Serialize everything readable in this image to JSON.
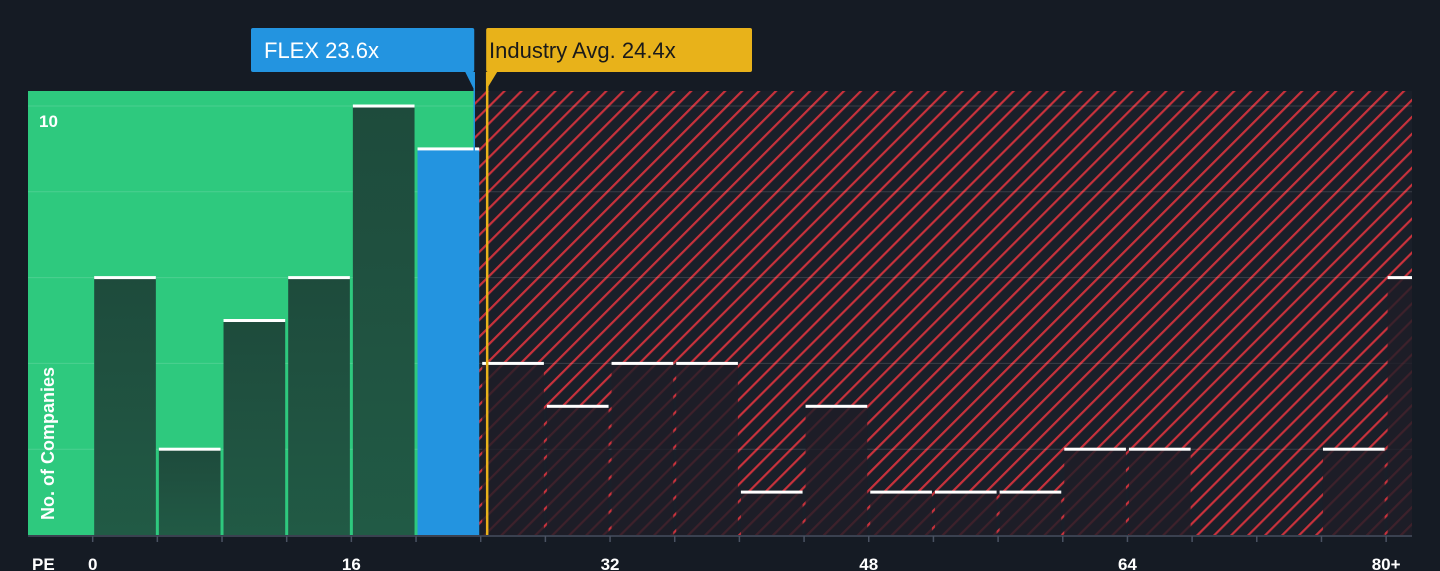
{
  "chart_data": {
    "type": "bar",
    "title": "",
    "xlabel": "PE",
    "ylabel": "No. of Companies",
    "x_ticks": [
      "0",
      "16",
      "32",
      "48",
      "64",
      "80+"
    ],
    "x_tick_values": [
      0,
      16,
      32,
      48,
      64,
      80
    ],
    "xlim": [
      -4,
      81.6
    ],
    "ylim": [
      0,
      10.35
    ],
    "y_max_label": "10",
    "bin_width": 4,
    "bins": [
      {
        "start": 0,
        "value": 6
      },
      {
        "start": 4,
        "value": 2
      },
      {
        "start": 8,
        "value": 5
      },
      {
        "start": 12,
        "value": 6
      },
      {
        "start": 16,
        "value": 10
      },
      {
        "start": 20,
        "value": 9
      },
      {
        "start": 24,
        "value": 4
      },
      {
        "start": 28,
        "value": 3
      },
      {
        "start": 32,
        "value": 4
      },
      {
        "start": 36,
        "value": 4
      },
      {
        "start": 40,
        "value": 1
      },
      {
        "start": 44,
        "value": 3
      },
      {
        "start": 48,
        "value": 1
      },
      {
        "start": 52,
        "value": 1
      },
      {
        "start": 56,
        "value": 1
      },
      {
        "start": 60,
        "value": 2
      },
      {
        "start": 64,
        "value": 2
      },
      {
        "start": 68,
        "value": 0
      },
      {
        "start": 72,
        "value": 0
      },
      {
        "start": 76,
        "value": 2
      },
      {
        "start": 80,
        "value": 6
      }
    ],
    "company": {
      "label": "FLEX 23.6x",
      "value": 23.6
    },
    "industry": {
      "label": "Industry Avg. 24.4x",
      "value": 24.4
    },
    "colors": {
      "background": "#151b24",
      "below_region": "#2ec97e",
      "below_bar": "#1e4b3c",
      "company_bar": "#2394e0",
      "above_hatch": "#c8323c",
      "above_bar": "#1f1d27",
      "industry": "#e8b21a",
      "cap": "#ffffff"
    }
  }
}
